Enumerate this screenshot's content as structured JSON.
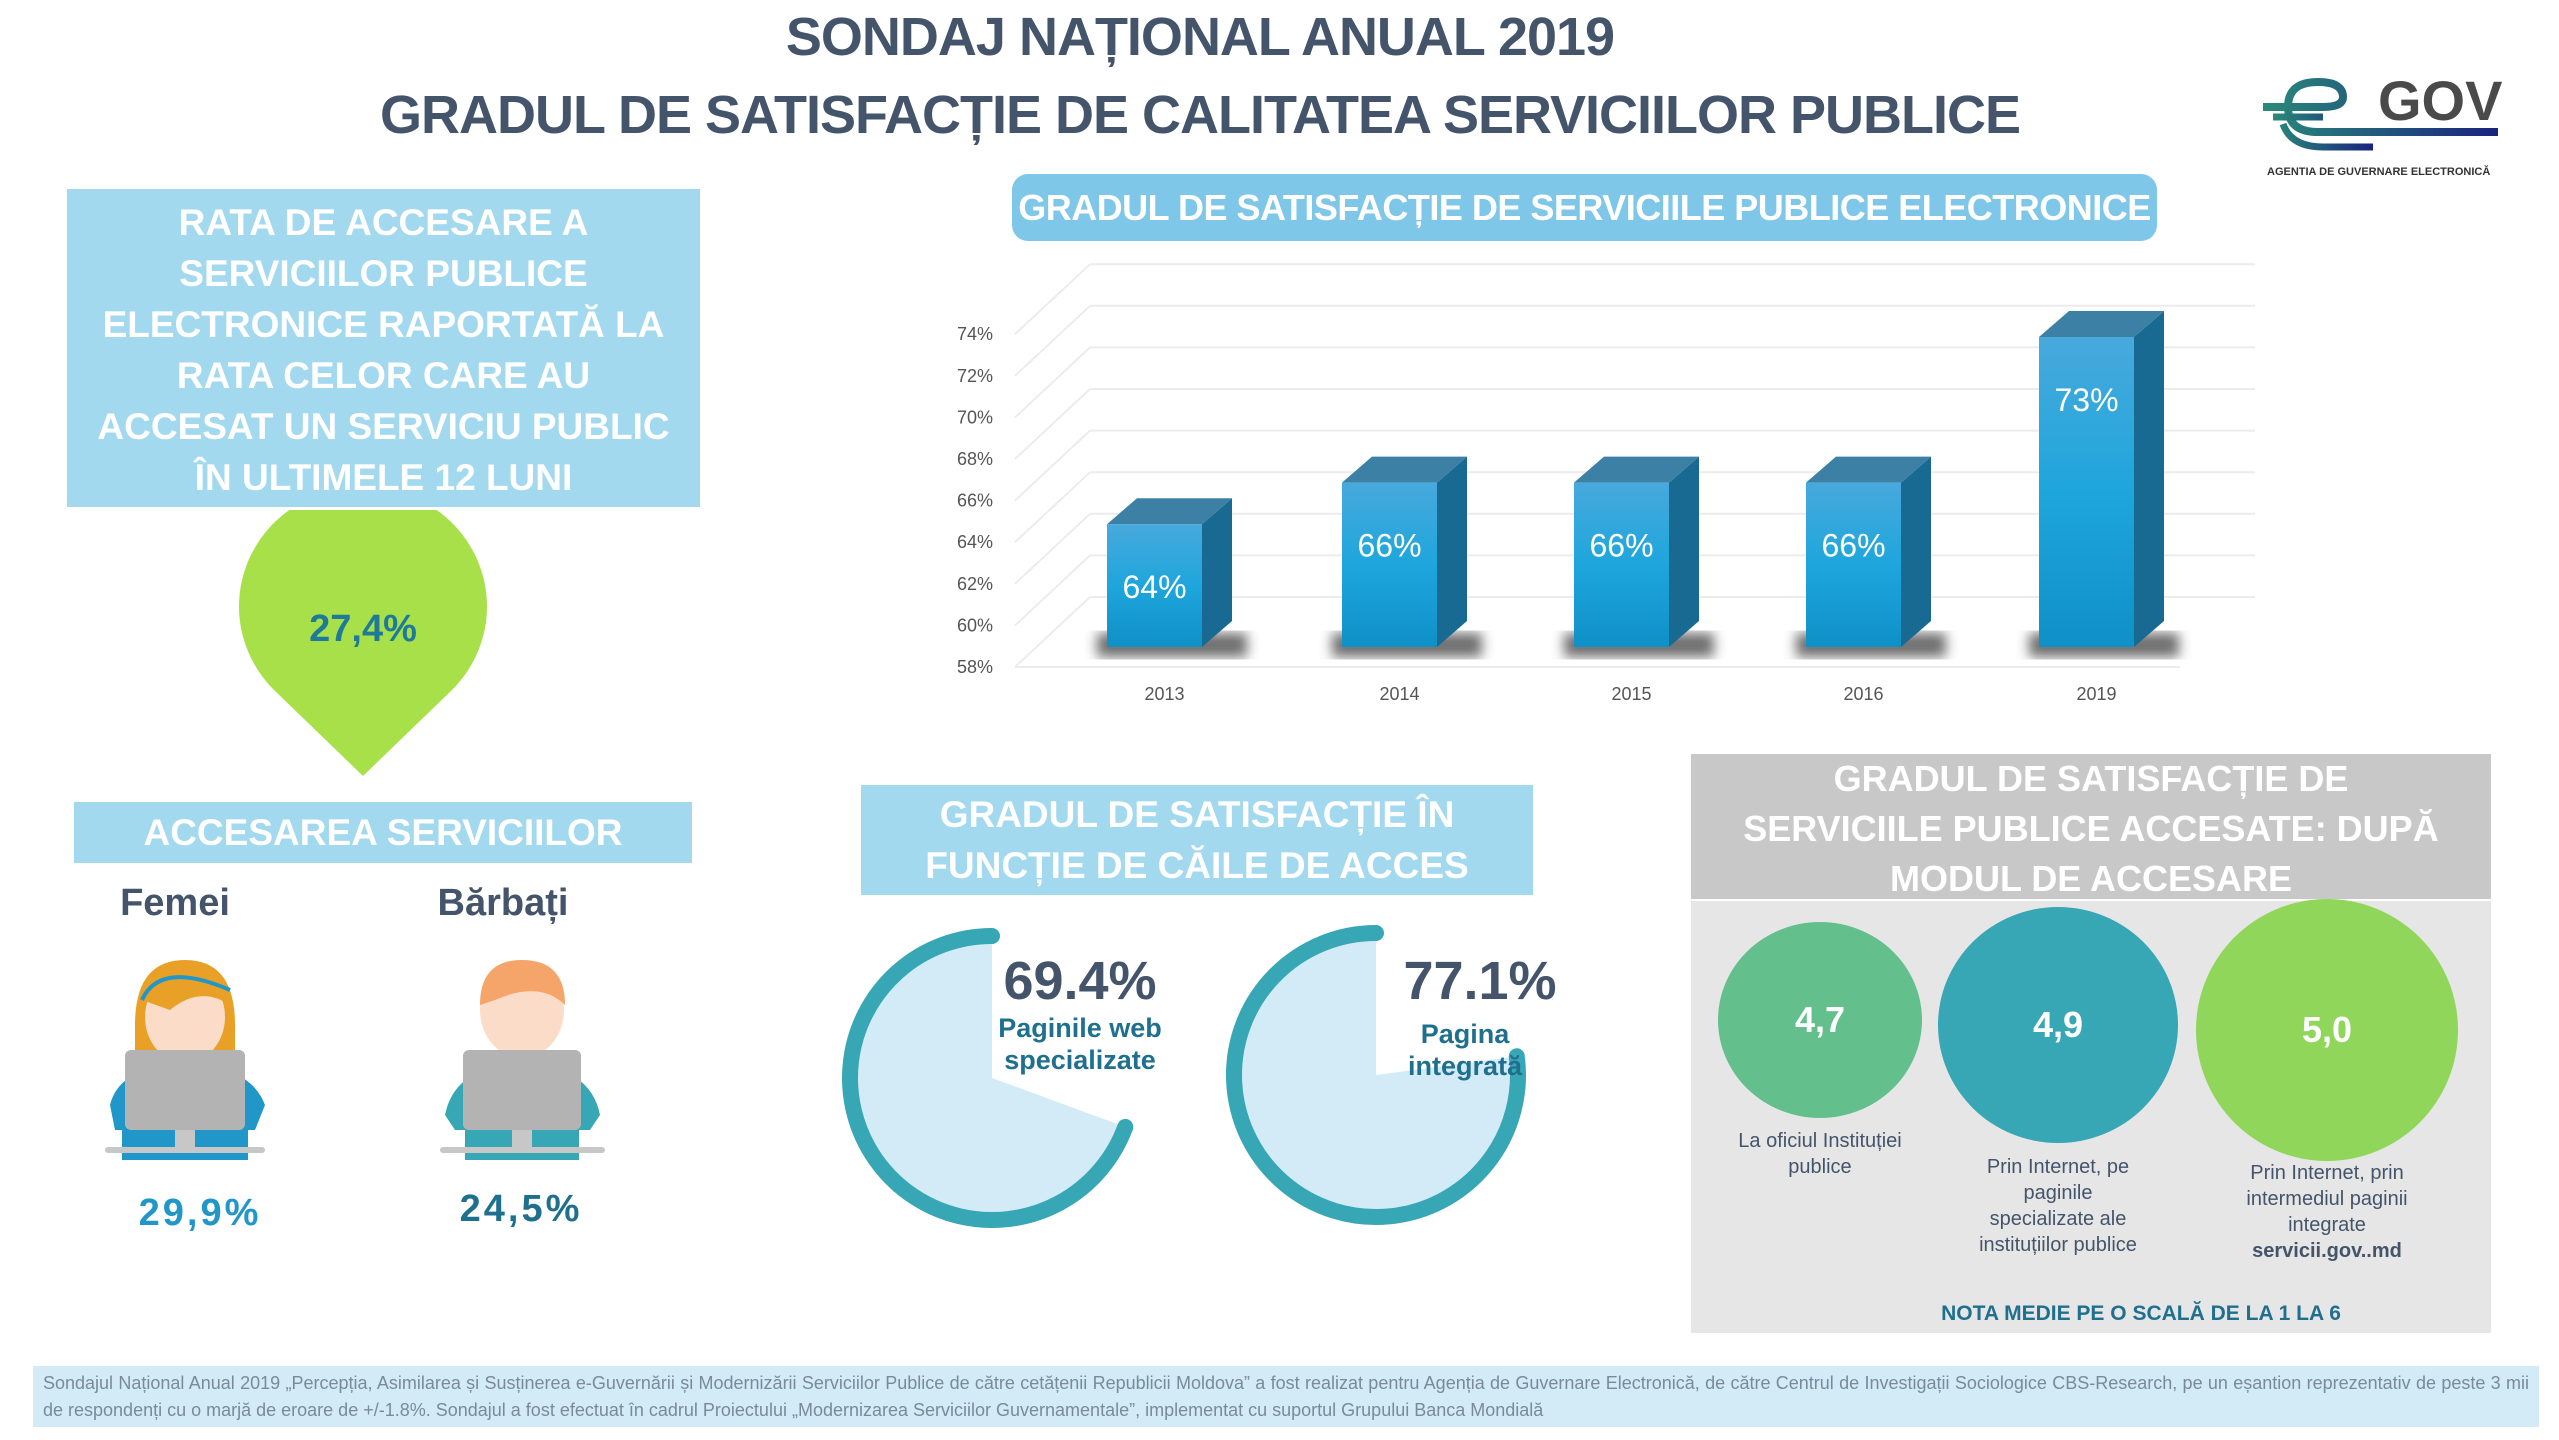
{
  "header": {
    "title_line1": "SONDAJ NAȚIONAL ANUAL 2019",
    "title_line2": "GRADUL DE SATISFACȚIE DE CALITATEA SERVICIILOR PUBLICE"
  },
  "logo": {
    "brand": "GOV",
    "subtitle": "AGENTIA DE GUVERNARE ELECTRONICĂ"
  },
  "colors": {
    "title": "#44546a",
    "box_blue": "#a3d9ef",
    "pill_blue": "#7fc7e8",
    "bar": "#1b9fd6",
    "green_pin": "#a8e04a",
    "teal": "#37a6b5",
    "green_circle": "#63c08c",
    "lime_circle": "#8fd65b"
  },
  "access_rate": {
    "title": "RATA DE ACCESARE A SERVICIILOR PUBLICE ELECTRONICE RAPORTATĂ LA RATA CELOR CARE AU ACCESAT UN SERVICIU PUBLIC ÎN ULTIMELE 12 LUNI",
    "value": "27,4%"
  },
  "gender": {
    "title": "ACCESAREA SERVICIILOR PUBLICE",
    "items": [
      {
        "label": "Femei",
        "value": "29,9%",
        "icon": "woman-at-computer-icon"
      },
      {
        "label": "Bărbați",
        "value": "24,5%",
        "icon": "man-at-computer-icon"
      }
    ]
  },
  "chart_data": {
    "type": "bar",
    "title": "GRADUL DE SATISFACȚIE DE SERVICIILE PUBLICE ELECTRONICE",
    "categories": [
      "2013",
      "2014",
      "2015",
      "2016",
      "2019"
    ],
    "values": [
      64,
      66,
      66,
      66,
      73
    ],
    "data_labels": [
      "64%",
      "66%",
      "66%",
      "66%",
      "73%"
    ],
    "yticks": [
      "58%",
      "60%",
      "62%",
      "64%",
      "66%",
      "68%",
      "70%",
      "72%",
      "74%"
    ],
    "ylim": [
      58,
      76
    ],
    "unit": "%",
    "grid": true,
    "style": "3d"
  },
  "access_channels": {
    "title": "GRADUL DE SATISFACȚIE ÎN FUNCȚIE DE CĂILE DE ACCES",
    "items": [
      {
        "value": "69.4%",
        "fraction": 0.694,
        "label_line1": "Paginile web",
        "label_line2": "specializate"
      },
      {
        "value": "77.1%",
        "fraction": 0.771,
        "label_line1": "Pagina",
        "label_line2": "integrată"
      }
    ]
  },
  "access_mode": {
    "title": "GRADUL DE SATISFACȚIE DE SERVICIILE PUBLICE ACCESATE: DUPĂ MODUL DE ACCESARE",
    "items": [
      {
        "value": "4,7",
        "label": "La oficiul Instituției publice"
      },
      {
        "value": "4,9",
        "label": "Prin Internet, pe paginile specializate ale instituțiilor publice"
      },
      {
        "value": "5,0",
        "label": "Prin Internet, prin intermediul paginii integrate",
        "label_bold": "servicii.gov..md"
      }
    ],
    "note": "NOTA MEDIE PE O SCALĂ DE LA 1 LA 6"
  },
  "footer": {
    "text": "Sondajul Național Anual 2019 „Percepția, Asimilarea și Susținerea e-Guvernării și Modernizării Serviciilor Publice de către cetățenii Republicii Moldova” a fost realizat pentru Agenția de Guvernare Electronică, de către Centrul de Investigații Sociologice CBS-Research, pe un eșantion reprezentativ de peste 3 mii de respondenți cu o marjă de eroare de +/-1.8%. Sondajul a fost efectuat în cadrul Proiectului „Modernizarea Serviciilor Guvernamentale”, implementat cu suportul Grupului Banca Mondială"
  }
}
